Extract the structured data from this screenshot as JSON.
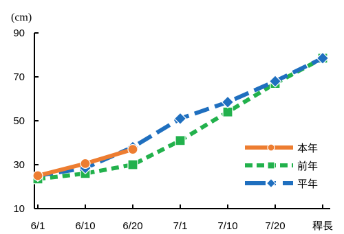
{
  "chart_data": {
    "type": "line",
    "y_unit": "(cm)",
    "categories": [
      "6/1",
      "6/10",
      "6/20",
      "7/1",
      "7/10",
      "7/20",
      "稈長"
    ],
    "ylim": [
      10,
      90
    ],
    "yticks": [
      10,
      30,
      50,
      70,
      90
    ],
    "grid": false,
    "legend_position": "bottom-right",
    "series": [
      {
        "name": "本年",
        "color": "#ED7D31",
        "dash": "solid",
        "marker": "circle",
        "values": [
          25,
          30.5,
          37,
          null,
          null,
          null,
          null
        ]
      },
      {
        "name": "前年",
        "color": "#22B14C",
        "dash": "dash",
        "marker": "square",
        "values": [
          23.5,
          26,
          30,
          41,
          54,
          67,
          78.5
        ]
      },
      {
        "name": "平年",
        "color": "#1F6FBF",
        "dash": "longdash",
        "marker": "diamond",
        "values": [
          25,
          28.5,
          38,
          51,
          58.5,
          68,
          78.5
        ]
      }
    ]
  }
}
